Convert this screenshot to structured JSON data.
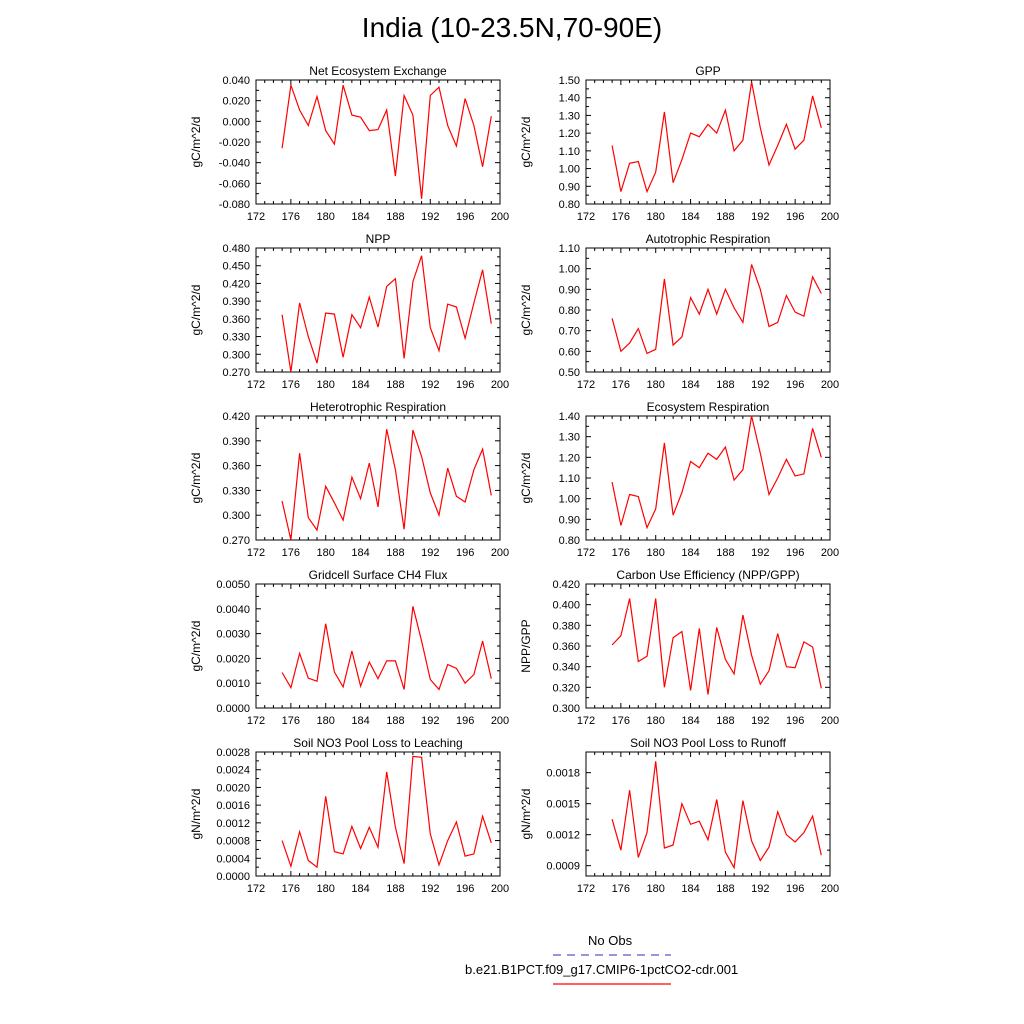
{
  "figure": {
    "title": "India (10-23.5N,70-90E)",
    "legend": [
      {
        "label": "No Obs",
        "color": "#5555cc",
        "dash": "dashed"
      },
      {
        "label": "b.e21.B1PCT.f09_g17.CMIP6-1pctCO2-cdr.001",
        "color": "#ff0000",
        "dash": "solid"
      }
    ]
  },
  "chart_data": [
    {
      "type": "line",
      "title": "Net Ecosystem Exchange",
      "ylabel": "gC/m^2/d",
      "xlim": [
        172,
        200
      ],
      "ylim": [
        -0.08,
        0.04
      ],
      "yticks": [
        "-0.080",
        "-0.060",
        "-0.040",
        "-0.020",
        "0.000",
        "0.020",
        "0.040"
      ],
      "xticks": [
        "172",
        "176",
        "180",
        "184",
        "188",
        "192",
        "196",
        "200"
      ],
      "x": [
        175,
        176,
        177,
        178,
        179,
        180,
        181,
        182,
        183,
        184,
        185,
        186,
        187,
        188,
        189,
        190,
        191,
        192,
        193,
        194,
        195,
        196,
        197,
        198,
        199
      ],
      "series": [
        {
          "values": [
            -0.026,
            0.035,
            0.011,
            -0.004,
            0.024,
            -0.009,
            -0.022,
            0.035,
            0.006,
            0.004,
            -0.009,
            -0.008,
            0.011,
            -0.053,
            0.025,
            0.006,
            -0.075,
            0.025,
            0.033,
            -0.004,
            -0.024,
            0.022,
            -0.004,
            -0.044,
            0.005
          ]
        }
      ]
    },
    {
      "type": "line",
      "title": "GPP",
      "ylabel": "gC/m^2/d",
      "xlim": [
        172,
        200
      ],
      "ylim": [
        0.8,
        1.5
      ],
      "yticks": [
        "0.80",
        "0.90",
        "1.00",
        "1.10",
        "1.20",
        "1.30",
        "1.40",
        "1.50"
      ],
      "xticks": [
        "172",
        "176",
        "180",
        "184",
        "188",
        "192",
        "196",
        "200"
      ],
      "x": [
        175,
        176,
        177,
        178,
        179,
        180,
        181,
        182,
        183,
        184,
        185,
        186,
        187,
        188,
        189,
        190,
        191,
        192,
        193,
        194,
        195,
        196,
        197,
        198,
        199
      ],
      "series": [
        {
          "values": [
            1.13,
            0.87,
            1.03,
            1.04,
            0.87,
            0.98,
            1.32,
            0.92,
            1.05,
            1.2,
            1.18,
            1.25,
            1.2,
            1.33,
            1.1,
            1.16,
            1.49,
            1.23,
            1.02,
            1.13,
            1.25,
            1.11,
            1.16,
            1.41,
            1.23
          ]
        }
      ]
    },
    {
      "type": "line",
      "title": "NPP",
      "ylabel": "gC/m^2/d",
      "xlim": [
        172,
        200
      ],
      "ylim": [
        0.27,
        0.48
      ],
      "yticks": [
        "0.270",
        "0.300",
        "0.330",
        "0.360",
        "0.390",
        "0.420",
        "0.450",
        "0.480"
      ],
      "xticks": [
        "172",
        "176",
        "180",
        "184",
        "188",
        "192",
        "196",
        "200"
      ],
      "x": [
        175,
        176,
        177,
        178,
        179,
        180,
        181,
        182,
        183,
        184,
        185,
        186,
        187,
        188,
        189,
        190,
        191,
        192,
        193,
        194,
        195,
        196,
        197,
        198,
        199
      ],
      "series": [
        {
          "values": [
            0.367,
            0.27,
            0.387,
            0.33,
            0.285,
            0.37,
            0.368,
            0.295,
            0.367,
            0.345,
            0.397,
            0.346,
            0.415,
            0.428,
            0.293,
            0.423,
            0.467,
            0.345,
            0.306,
            0.385,
            0.38,
            0.327,
            0.387,
            0.443,
            0.352
          ]
        }
      ]
    },
    {
      "type": "line",
      "title": "Autotrophic Respiration",
      "ylabel": "gC/m^2/d",
      "xlim": [
        172,
        200
      ],
      "ylim": [
        0.5,
        1.1
      ],
      "yticks": [
        "0.50",
        "0.60",
        "0.70",
        "0.80",
        "0.90",
        "1.00",
        "1.10"
      ],
      "xticks": [
        "172",
        "176",
        "180",
        "184",
        "188",
        "192",
        "196",
        "200"
      ],
      "x": [
        175,
        176,
        177,
        178,
        179,
        180,
        181,
        182,
        183,
        184,
        185,
        186,
        187,
        188,
        189,
        190,
        191,
        192,
        193,
        194,
        195,
        196,
        197,
        198,
        199
      ],
      "series": [
        {
          "values": [
            0.76,
            0.6,
            0.64,
            0.71,
            0.59,
            0.61,
            0.95,
            0.63,
            0.67,
            0.86,
            0.78,
            0.9,
            0.78,
            0.9,
            0.81,
            0.74,
            1.02,
            0.9,
            0.72,
            0.74,
            0.87,
            0.79,
            0.77,
            0.96,
            0.88
          ]
        }
      ]
    },
    {
      "type": "line",
      "title": "Heterotrophic Respiration",
      "ylabel": "gC/m^2/d",
      "xlim": [
        172,
        200
      ],
      "ylim": [
        0.27,
        0.42
      ],
      "yticks": [
        "0.270",
        "0.300",
        "0.330",
        "0.360",
        "0.390",
        "0.420"
      ],
      "xticks": [
        "172",
        "176",
        "180",
        "184",
        "188",
        "192",
        "196",
        "200"
      ],
      "x": [
        175,
        176,
        177,
        178,
        179,
        180,
        181,
        182,
        183,
        184,
        185,
        186,
        187,
        188,
        189,
        190,
        191,
        192,
        193,
        194,
        195,
        196,
        197,
        198,
        199
      ],
      "series": [
        {
          "values": [
            0.317,
            0.27,
            0.375,
            0.297,
            0.282,
            0.335,
            0.315,
            0.294,
            0.346,
            0.32,
            0.363,
            0.31,
            0.404,
            0.355,
            0.283,
            0.403,
            0.371,
            0.327,
            0.3,
            0.357,
            0.323,
            0.316,
            0.355,
            0.38,
            0.324
          ]
        }
      ]
    },
    {
      "type": "line",
      "title": "Ecosystem Respiration",
      "ylabel": "gC/m^2/d",
      "xlim": [
        172,
        200
      ],
      "ylim": [
        0.8,
        1.4
      ],
      "yticks": [
        "0.80",
        "0.90",
        "1.00",
        "1.10",
        "1.20",
        "1.30",
        "1.40"
      ],
      "xticks": [
        "172",
        "176",
        "180",
        "184",
        "188",
        "192",
        "196",
        "200"
      ],
      "x": [
        175,
        176,
        177,
        178,
        179,
        180,
        181,
        182,
        183,
        184,
        185,
        186,
        187,
        188,
        189,
        190,
        191,
        192,
        193,
        194,
        195,
        196,
        197,
        198,
        199
      ],
      "series": [
        {
          "values": [
            1.08,
            0.87,
            1.02,
            1.01,
            0.86,
            0.95,
            1.27,
            0.92,
            1.03,
            1.18,
            1.15,
            1.22,
            1.19,
            1.25,
            1.09,
            1.14,
            1.4,
            1.22,
            1.02,
            1.1,
            1.19,
            1.11,
            1.12,
            1.34,
            1.2
          ]
        }
      ]
    },
    {
      "type": "line",
      "title": "Gridcell Surface CH4 Flux",
      "ylabel": "gC/m^2/d",
      "xlim": [
        172,
        200
      ],
      "ylim": [
        0,
        0.005
      ],
      "yticks": [
        "0.0000",
        "0.0010",
        "0.0020",
        "0.0030",
        "0.0040",
        "0.0050"
      ],
      "xticks": [
        "172",
        "176",
        "180",
        "184",
        "188",
        "192",
        "196",
        "200"
      ],
      "x": [
        175,
        176,
        177,
        178,
        179,
        180,
        181,
        182,
        183,
        184,
        185,
        186,
        187,
        188,
        189,
        190,
        191,
        192,
        193,
        194,
        195,
        196,
        197,
        198,
        199
      ],
      "series": [
        {
          "values": [
            0.00143,
            0.00082,
            0.0022,
            0.0012,
            0.00108,
            0.0034,
            0.00145,
            0.00085,
            0.0023,
            0.00088,
            0.00185,
            0.00118,
            0.0019,
            0.0019,
            0.00075,
            0.0041,
            0.0027,
            0.00115,
            0.00075,
            0.00175,
            0.0016,
            0.001,
            0.00135,
            0.0027,
            0.00118
          ]
        }
      ]
    },
    {
      "type": "line",
      "title": "Carbon Use Efficiency (NPP/GPP)",
      "ylabel": "NPP/GPP",
      "xlim": [
        172,
        200
      ],
      "ylim": [
        0.3,
        0.42
      ],
      "yticks": [
        "0.300",
        "0.320",
        "0.340",
        "0.360",
        "0.380",
        "0.400",
        "0.420"
      ],
      "xticks": [
        "172",
        "176",
        "180",
        "184",
        "188",
        "192",
        "196",
        "200"
      ],
      "x": [
        175,
        176,
        177,
        178,
        179,
        180,
        181,
        182,
        183,
        184,
        185,
        186,
        187,
        188,
        189,
        190,
        191,
        192,
        193,
        194,
        195,
        196,
        197,
        198,
        199
      ],
      "series": [
        {
          "values": [
            0.361,
            0.37,
            0.406,
            0.345,
            0.35,
            0.406,
            0.32,
            0.368,
            0.374,
            0.317,
            0.377,
            0.313,
            0.378,
            0.347,
            0.333,
            0.39,
            0.351,
            0.323,
            0.336,
            0.372,
            0.34,
            0.339,
            0.364,
            0.359,
            0.319
          ]
        }
      ]
    },
    {
      "type": "line",
      "title": "Soil NO3 Pool Loss to Leaching",
      "ylabel": "gN/m^2/d",
      "xlim": [
        172,
        200
      ],
      "ylim": [
        0,
        0.0028
      ],
      "yticks": [
        "0.0000",
        "0.0004",
        "0.0008",
        "0.0012",
        "0.0016",
        "0.0020",
        "0.0024",
        "0.0028"
      ],
      "xticks": [
        "172",
        "176",
        "180",
        "184",
        "188",
        "192",
        "196",
        "200"
      ],
      "x": [
        175,
        176,
        177,
        178,
        179,
        180,
        181,
        182,
        183,
        184,
        185,
        186,
        187,
        188,
        189,
        190,
        191,
        192,
        193,
        194,
        195,
        196,
        197,
        198,
        199
      ],
      "series": [
        {
          "values": [
            0.0008,
            0.00022,
            0.001,
            0.00035,
            0.0002,
            0.0018,
            0.00055,
            0.0005,
            0.00112,
            0.00062,
            0.0011,
            0.00065,
            0.00235,
            0.0011,
            0.00028,
            0.0027,
            0.00268,
            0.00095,
            0.00025,
            0.0008,
            0.00122,
            0.00045,
            0.0005,
            0.00135,
            0.00075
          ]
        }
      ]
    },
    {
      "type": "line",
      "title": "Soil NO3 Pool Loss to Runoff",
      "ylabel": "gN/m^2/d",
      "xlim": [
        172,
        200
      ],
      "ylim": [
        0.0008,
        0.002
      ],
      "yticks": [
        "0.0009",
        "0.0012",
        "0.0015",
        "0.0018"
      ],
      "ytick_values": [
        0.0009,
        0.0012,
        0.0015,
        0.0018
      ],
      "xticks": [
        "172",
        "176",
        "180",
        "184",
        "188",
        "192",
        "196",
        "200"
      ],
      "x": [
        175,
        176,
        177,
        178,
        179,
        180,
        181,
        182,
        183,
        184,
        185,
        186,
        187,
        188,
        189,
        190,
        191,
        192,
        193,
        194,
        195,
        196,
        197,
        198,
        199
      ],
      "series": [
        {
          "values": [
            0.00135,
            0.00105,
            0.00163,
            0.00098,
            0.00122,
            0.00191,
            0.00107,
            0.0011,
            0.0015,
            0.0013,
            0.00133,
            0.00115,
            0.00154,
            0.00103,
            0.00088,
            0.00153,
            0.00114,
            0.00095,
            0.00108,
            0.00142,
            0.0012,
            0.00113,
            0.00122,
            0.00138,
            0.001
          ]
        }
      ]
    }
  ]
}
